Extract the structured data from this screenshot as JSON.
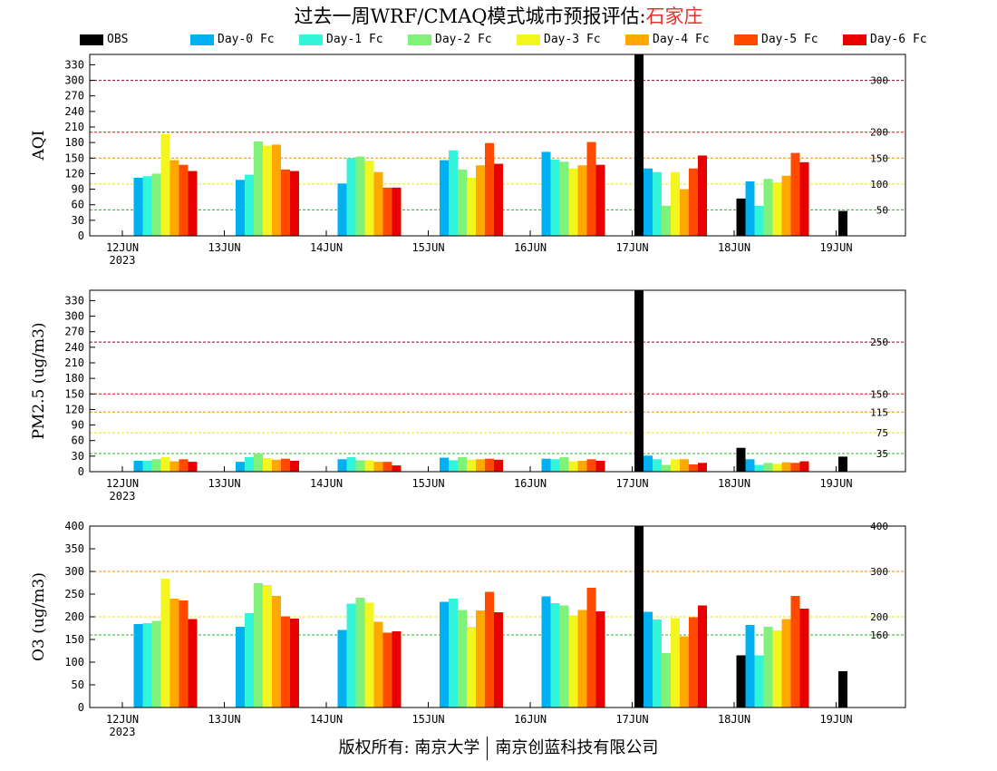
{
  "title": {
    "prefix": "过去一周WRF/CMAQ模式城市预报评估:",
    "city": "石家庄"
  },
  "footer": {
    "left": "版权所有: 南京大学",
    "right": "南京创蓝科技有限公司"
  },
  "legend": [
    {
      "name": "OBS",
      "color": "#000000"
    },
    {
      "name": "Day-0 Fc",
      "color": "#00b0f0"
    },
    {
      "name": "Day-1 Fc",
      "color": "#33f5dc"
    },
    {
      "name": "Day-2 Fc",
      "color": "#80f27a"
    },
    {
      "name": "Day-3 Fc",
      "color": "#f2f51e"
    },
    {
      "name": "Day-4 Fc",
      "color": "#ffa800"
    },
    {
      "name": "Day-5 Fc",
      "color": "#ff4a00"
    },
    {
      "name": "Day-6 Fc",
      "color": "#e80000"
    }
  ],
  "chart_data": [
    {
      "type": "bar",
      "ylabel": "AQI",
      "ylim": [
        0,
        350
      ],
      "yticks": [
        0,
        30,
        60,
        90,
        120,
        150,
        180,
        210,
        240,
        270,
        300,
        330
      ],
      "categories": [
        "12JUN",
        "13JUN",
        "14JUN",
        "15JUN",
        "16JUN",
        "17JUN",
        "18JUN",
        "19JUN"
      ],
      "year_label": "2023",
      "thresholds": [
        {
          "value": 50,
          "label": "50",
          "color": "#22bb22"
        },
        {
          "value": 100,
          "label": "100",
          "color": "#e8e800"
        },
        {
          "value": 150,
          "label": "150",
          "color": "#f08a00"
        },
        {
          "value": 200,
          "label": "200",
          "color": "#dd1111"
        },
        {
          "value": 300,
          "label": "300",
          "color": "#990033"
        }
      ],
      "series": [
        {
          "name": "OBS",
          "values": [
            null,
            null,
            null,
            null,
            null,
            350,
            72,
            48
          ]
        },
        {
          "name": "Day-0 Fc",
          "values": [
            112,
            108,
            101,
            146,
            162,
            130,
            105,
            null
          ]
        },
        {
          "name": "Day-1 Fc",
          "values": [
            115,
            118,
            150,
            165,
            147,
            123,
            58,
            null
          ]
        },
        {
          "name": "Day-2 Fc",
          "values": [
            120,
            182,
            153,
            128,
            143,
            58,
            110,
            null
          ]
        },
        {
          "name": "Day-3 Fc",
          "values": [
            196,
            174,
            145,
            112,
            130,
            123,
            103,
            null
          ]
        },
        {
          "name": "Day-4 Fc",
          "values": [
            146,
            176,
            123,
            136,
            136,
            90,
            116,
            null
          ]
        },
        {
          "name": "Day-5 Fc",
          "values": [
            137,
            128,
            93,
            179,
            181,
            130,
            160,
            null
          ]
        },
        {
          "name": "Day-6 Fc",
          "values": [
            125,
            125,
            93,
            139,
            137,
            155,
            142,
            null
          ]
        }
      ]
    },
    {
      "type": "bar",
      "ylabel": "PM2.5 (ug/m3)",
      "ylim": [
        0,
        350
      ],
      "yticks": [
        0,
        30,
        60,
        90,
        120,
        150,
        180,
        210,
        240,
        270,
        300,
        330
      ],
      "categories": [
        "12JUN",
        "13JUN",
        "14JUN",
        "15JUN",
        "16JUN",
        "17JUN",
        "18JUN",
        "19JUN"
      ],
      "year_label": "2023",
      "thresholds": [
        {
          "value": 35,
          "label": "35",
          "color": "#22bb22"
        },
        {
          "value": 75,
          "label": "75",
          "color": "#e8e800"
        },
        {
          "value": 115,
          "label": "115",
          "color": "#f08a00"
        },
        {
          "value": 150,
          "label": "150",
          "color": "#dd1111"
        },
        {
          "value": 250,
          "label": "250",
          "color": "#990033"
        }
      ],
      "series": [
        {
          "name": "OBS",
          "values": [
            null,
            null,
            null,
            null,
            null,
            350,
            46,
            29
          ]
        },
        {
          "name": "Day-0 Fc",
          "values": [
            21,
            19,
            24,
            27,
            25,
            31,
            24,
            null
          ]
        },
        {
          "name": "Day-1 Fc",
          "values": [
            21,
            28,
            28,
            22,
            24,
            24,
            13,
            null
          ]
        },
        {
          "name": "Day-2 Fc",
          "values": [
            24,
            35,
            22,
            28,
            28,
            13,
            17,
            null
          ]
        },
        {
          "name": "Day-3 Fc",
          "values": [
            28,
            26,
            22,
            23,
            20,
            24,
            15,
            null
          ]
        },
        {
          "name": "Day-4 Fc",
          "values": [
            20,
            23,
            19,
            24,
            21,
            24,
            18,
            null
          ]
        },
        {
          "name": "Day-5 Fc",
          "values": [
            24,
            25,
            19,
            25,
            24,
            14,
            17,
            null
          ]
        },
        {
          "name": "Day-6 Fc",
          "values": [
            19,
            21,
            12,
            23,
            21,
            17,
            20,
            null
          ]
        }
      ]
    },
    {
      "type": "bar",
      "ylabel": "O3 (ug/m3)",
      "ylim": [
        0,
        400
      ],
      "yticks": [
        0,
        50,
        100,
        150,
        200,
        250,
        300,
        350,
        400
      ],
      "categories": [
        "12JUN",
        "13JUN",
        "14JUN",
        "15JUN",
        "16JUN",
        "17JUN",
        "18JUN",
        "19JUN"
      ],
      "year_label": "2023",
      "thresholds": [
        {
          "value": 160,
          "label": "160",
          "color": "#22bb22"
        },
        {
          "value": 200,
          "label": "200",
          "color": "#e8e800"
        },
        {
          "value": 300,
          "label": "300",
          "color": "#f08a00"
        },
        {
          "value": 400,
          "label": "400",
          "color": "#dd1111"
        }
      ],
      "series": [
        {
          "name": "OBS",
          "values": [
            null,
            null,
            null,
            null,
            null,
            400,
            115,
            80
          ]
        },
        {
          "name": "Day-0 Fc",
          "values": [
            184,
            178,
            171,
            233,
            245,
            211,
            182,
            null
          ]
        },
        {
          "name": "Day-1 Fc",
          "values": [
            186,
            208,
            229,
            240,
            230,
            194,
            115,
            null
          ]
        },
        {
          "name": "Day-2 Fc",
          "values": [
            191,
            274,
            242,
            215,
            225,
            120,
            178,
            null
          ]
        },
        {
          "name": "Day-3 Fc",
          "values": [
            284,
            270,
            231,
            178,
            203,
            197,
            170,
            null
          ]
        },
        {
          "name": "Day-4 Fc",
          "values": [
            240,
            246,
            189,
            214,
            215,
            157,
            195,
            null
          ]
        },
        {
          "name": "Day-5 Fc",
          "values": [
            236,
            201,
            165,
            255,
            264,
            199,
            246,
            null
          ]
        },
        {
          "name": "Day-6 Fc",
          "values": [
            195,
            196,
            168,
            210,
            212,
            225,
            218,
            null
          ]
        }
      ]
    }
  ]
}
